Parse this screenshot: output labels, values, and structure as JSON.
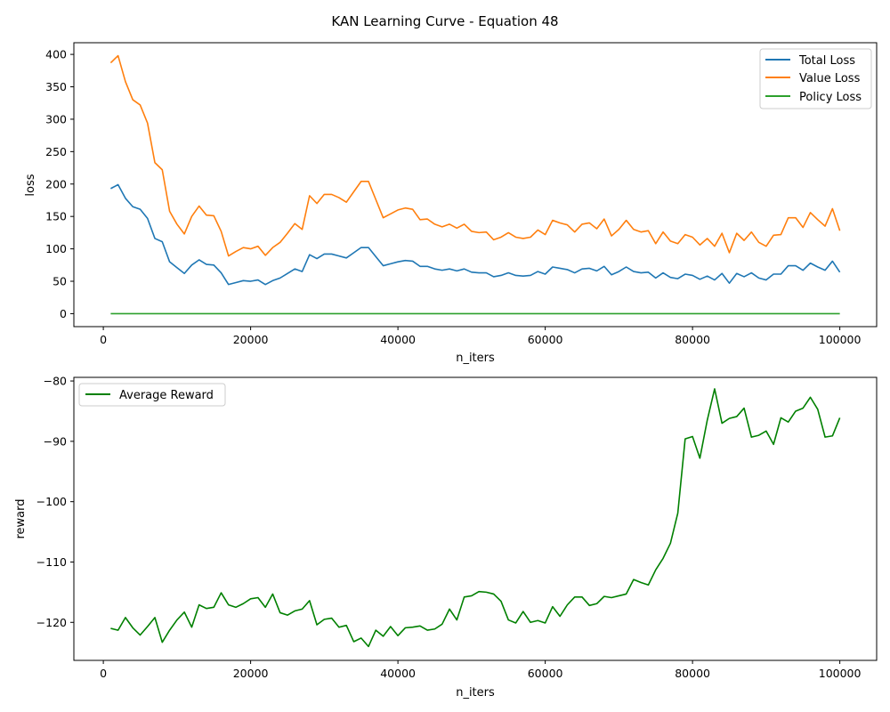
{
  "figure_title": "KAN Learning Curve - Equation 48",
  "chart_data": [
    {
      "type": "line",
      "xlabel": "n_iters",
      "ylabel": "loss",
      "xlim": [
        -4000,
        105000
      ],
      "ylim": [
        -20,
        418
      ],
      "xticks": [
        0,
        20000,
        40000,
        60000,
        80000,
        100000
      ],
      "yticks": [
        0,
        50,
        100,
        150,
        200,
        250,
        300,
        350,
        400
      ],
      "legend_position": "top-right",
      "x": [
        1000,
        2000,
        3000,
        4000,
        5000,
        6000,
        7000,
        8000,
        9000,
        10000,
        11000,
        12000,
        13000,
        14000,
        15000,
        16000,
        17000,
        18000,
        19000,
        20000,
        21000,
        22000,
        23000,
        24000,
        25000,
        26000,
        27000,
        28000,
        29000,
        30000,
        31000,
        32000,
        33000,
        34000,
        35000,
        36000,
        37000,
        38000,
        39000,
        40000,
        41000,
        42000,
        43000,
        44000,
        45000,
        46000,
        47000,
        48000,
        49000,
        50000,
        51000,
        52000,
        53000,
        54000,
        55000,
        56000,
        57000,
        58000,
        59000,
        60000,
        61000,
        62000,
        63000,
        64000,
        65000,
        66000,
        67000,
        68000,
        69000,
        70000,
        71000,
        72000,
        73000,
        74000,
        75000,
        76000,
        77000,
        78000,
        79000,
        80000,
        81000,
        82000,
        83000,
        84000,
        85000,
        86000,
        87000,
        88000,
        89000,
        90000,
        91000,
        92000,
        93000,
        94000,
        95000,
        96000,
        97000,
        98000,
        99000,
        100000
      ],
      "series": [
        {
          "name": "Total Loss",
          "color": "#1f77b4",
          "values": [
            193,
            199,
            178,
            165,
            161,
            147,
            116,
            111,
            80,
            71,
            62,
            75,
            83,
            76,
            75,
            63,
            45,
            48,
            51,
            50,
            52,
            45,
            51,
            55,
            62,
            69,
            65,
            91,
            85,
            92,
            92,
            89,
            86,
            94,
            102,
            102,
            88,
            74,
            77,
            80,
            82,
            81,
            73,
            73,
            69,
            67,
            69,
            66,
            69,
            64,
            63,
            63,
            57,
            59,
            63,
            59,
            58,
            59,
            65,
            61,
            72,
            70,
            68,
            63,
            69,
            70,
            66,
            73,
            60,
            65,
            72,
            65,
            63,
            64,
            55,
            63,
            56,
            54,
            61,
            59,
            53,
            58,
            52,
            62,
            47,
            62,
            57,
            63,
            55,
            52,
            61,
            61,
            74,
            74,
            67,
            78,
            72,
            67,
            81,
            64
          ]
        },
        {
          "name": "Value Loss",
          "color": "#ff7f0e",
          "values": [
            387,
            398,
            358,
            330,
            322,
            294,
            233,
            222,
            158,
            138,
            123,
            150,
            166,
            152,
            151,
            127,
            89,
            96,
            102,
            100,
            104,
            90,
            102,
            110,
            124,
            139,
            130,
            182,
            170,
            184,
            184,
            179,
            172,
            188,
            204,
            204,
            176,
            148,
            154,
            160,
            163,
            161,
            145,
            146,
            138,
            134,
            138,
            132,
            138,
            127,
            125,
            126,
            114,
            118,
            125,
            118,
            116,
            118,
            129,
            122,
            144,
            140,
            137,
            126,
            138,
            140,
            131,
            146,
            120,
            130,
            144,
            130,
            126,
            128,
            108,
            126,
            112,
            108,
            122,
            118,
            106,
            116,
            104,
            124,
            94,
            124,
            113,
            126,
            110,
            104,
            121,
            122,
            148,
            148,
            133,
            156,
            145,
            135,
            162,
            128
          ]
        },
        {
          "name": "Policy Loss",
          "color": "#2ca02c",
          "values": [
            0,
            0,
            0,
            0,
            0,
            0,
            0,
            0,
            0,
            0,
            0,
            0,
            0,
            0,
            0,
            0,
            0,
            0,
            0,
            0,
            0,
            0,
            0,
            0,
            0,
            0,
            0,
            0,
            0,
            0,
            0,
            0,
            0,
            0,
            0,
            0,
            0,
            0,
            0,
            0,
            0,
            0,
            0,
            0,
            0,
            0,
            0,
            0,
            0,
            0,
            0,
            0,
            0,
            0,
            0,
            0,
            0,
            0,
            0,
            0,
            0,
            0,
            0,
            0,
            0,
            0,
            0,
            0,
            0,
            0,
            0,
            0,
            0,
            0,
            0,
            0,
            0,
            0,
            0,
            0,
            0,
            0,
            0,
            0,
            0,
            0,
            0,
            0,
            0,
            0,
            0,
            0,
            0,
            0,
            0,
            0,
            0,
            0,
            0,
            0
          ]
        }
      ]
    },
    {
      "type": "line",
      "xlabel": "n_iters",
      "ylabel": "reward",
      "xlim": [
        -4000,
        105000
      ],
      "ylim": [
        -126.3,
        -79.4
      ],
      "xticks": [
        0,
        20000,
        40000,
        60000,
        80000,
        100000
      ],
      "yticks": [
        -120,
        -110,
        -100,
        -90,
        -80
      ],
      "ytick_labels": [
        "−120",
        "−110",
        "−100",
        "−90",
        "−80"
      ],
      "legend_position": "top-left",
      "x": [
        1000,
        2000,
        3000,
        4000,
        5000,
        6000,
        7000,
        8000,
        9000,
        10000,
        11000,
        12000,
        13000,
        14000,
        15000,
        16000,
        17000,
        18000,
        19000,
        20000,
        21000,
        22000,
        23000,
        24000,
        25000,
        26000,
        27000,
        28000,
        29000,
        30000,
        31000,
        32000,
        33000,
        34000,
        35000,
        36000,
        37000,
        38000,
        39000,
        40000,
        41000,
        42000,
        43000,
        44000,
        45000,
        46000,
        47000,
        48000,
        49000,
        50000,
        51000,
        52000,
        53000,
        54000,
        55000,
        56000,
        57000,
        58000,
        59000,
        60000,
        61000,
        62000,
        63000,
        64000,
        65000,
        66000,
        67000,
        68000,
        69000,
        70000,
        71000,
        72000,
        73000,
        74000,
        75000,
        76000,
        77000,
        78000,
        79000,
        80000,
        81000,
        82000,
        83000,
        84000,
        85000,
        86000,
        87000,
        88000,
        89000,
        90000,
        91000,
        92000,
        93000,
        94000,
        95000,
        96000,
        97000,
        98000,
        99000,
        100000
      ],
      "series": [
        {
          "name": "Average Reward",
          "color": "#008000",
          "values": [
            -121.0,
            -121.3,
            -119.2,
            -120.9,
            -122.1,
            -120.7,
            -119.2,
            -123.3,
            -121.3,
            -119.6,
            -118.3,
            -120.8,
            -117.1,
            -117.7,
            -117.5,
            -115.1,
            -117.1,
            -117.5,
            -116.9,
            -116.1,
            -115.9,
            -117.5,
            -115.3,
            -118.4,
            -118.8,
            -118.1,
            -117.8,
            -116.4,
            -120.4,
            -119.5,
            -119.3,
            -120.8,
            -120.5,
            -123.2,
            -122.6,
            -124.0,
            -121.3,
            -122.3,
            -120.7,
            -122.2,
            -120.9,
            -120.8,
            -120.6,
            -121.3,
            -121.1,
            -120.3,
            -117.8,
            -119.6,
            -115.8,
            -115.6,
            -114.9,
            -115.0,
            -115.3,
            -116.5,
            -119.6,
            -120.1,
            -118.2,
            -120.0,
            -119.7,
            -120.1,
            -117.4,
            -119.0,
            -117.1,
            -115.8,
            -115.8,
            -117.2,
            -116.9,
            -115.7,
            -115.9,
            -115.6,
            -115.3,
            -112.9,
            -113.4,
            -113.8,
            -111.3,
            -109.4,
            -106.9,
            -101.9,
            -89.6,
            -89.2,
            -92.8,
            -86.5,
            -81.3,
            -87.0,
            -86.2,
            -85.9,
            -84.5,
            -89.3,
            -89.0,
            -88.3,
            -90.5,
            -86.1,
            -86.8,
            -85.0,
            -84.5,
            -82.7,
            -84.7,
            -89.3,
            -89.1,
            -86.1
          ]
        }
      ]
    }
  ]
}
